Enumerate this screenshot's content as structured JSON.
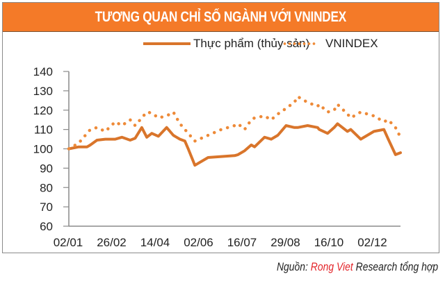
{
  "header": {
    "title": "TƯƠNG QUAN CHỈ SỐ NGÀNH VỚI VNINDEX"
  },
  "legend": [
    {
      "label": "Thực phẩm (thủy sản)",
      "style": "solid",
      "color": "#D9752B"
    },
    {
      "label": "VNINDEX",
      "style": "dotted",
      "color": "#EE8A38"
    }
  ],
  "source": {
    "prefix": "Nguồn: ",
    "brand": "Rong Viet",
    "suffix": " Research tổng hợp",
    "brand_color": "#E3262B"
  },
  "colors": {
    "header_bg": "#F47A28",
    "axis": "#8a8a8a"
  },
  "chart_data": {
    "type": "line",
    "title": "TƯƠNG QUAN CHỈ SỐ NGÀNH VỚI VNINDEX",
    "xlabel": "",
    "ylabel": "",
    "ylim": [
      60,
      140
    ],
    "yticks": [
      60,
      70,
      80,
      90,
      100,
      110,
      120,
      130,
      140
    ],
    "xticks": [
      "02/01",
      "26/02",
      "14/04",
      "02/06",
      "16/07",
      "29/08",
      "16/10",
      "02/12"
    ],
    "grid": false,
    "legend_position": "top",
    "x": [
      0,
      0.03,
      0.055,
      0.065,
      0.085,
      0.11,
      0.14,
      0.16,
      0.185,
      0.2,
      0.22,
      0.235,
      0.25,
      0.27,
      0.295,
      0.315,
      0.325,
      0.335,
      0.35,
      0.36,
      0.38,
      0.42,
      0.46,
      0.5,
      0.51,
      0.53,
      0.55,
      0.56,
      0.59,
      0.61,
      0.63,
      0.64,
      0.655,
      0.68,
      0.69,
      0.72,
      0.75,
      0.755,
      0.78,
      0.8,
      0.81,
      0.84,
      0.85,
      0.88,
      0.92,
      0.95,
      0.963,
      0.985,
      1.0
    ],
    "series": [
      {
        "name": "Thực phẩm (thủy sản)",
        "style": "solid",
        "values": [
          100,
          101,
          101,
          102,
          104.5,
          105,
          105,
          106,
          104.5,
          105.5,
          111,
          106,
          108,
          106.5,
          111,
          107,
          106,
          105,
          104,
          100,
          91.5,
          95.5,
          96,
          96.5,
          97,
          99,
          102,
          101,
          106,
          105,
          107,
          109,
          112,
          111,
          111,
          112,
          111,
          110,
          108,
          111,
          113,
          109,
          110,
          105,
          109,
          110,
          105,
          97,
          98
        ]
      },
      {
        "name": "VNINDEX",
        "style": "dotted",
        "values": [
          100,
          103,
          108,
          110,
          111,
          109,
          114,
          112,
          115,
          112,
          116,
          119,
          118.5,
          116,
          117,
          119,
          116,
          113,
          110,
          108,
          104,
          107,
          110,
          112,
          113,
          110,
          115,
          116,
          117,
          115,
          118,
          119,
          121,
          124,
          127,
          124,
          122,
          123,
          119,
          120,
          123,
          118,
          116,
          119,
          117,
          114,
          115,
          111,
          106
        ]
      }
    ]
  }
}
